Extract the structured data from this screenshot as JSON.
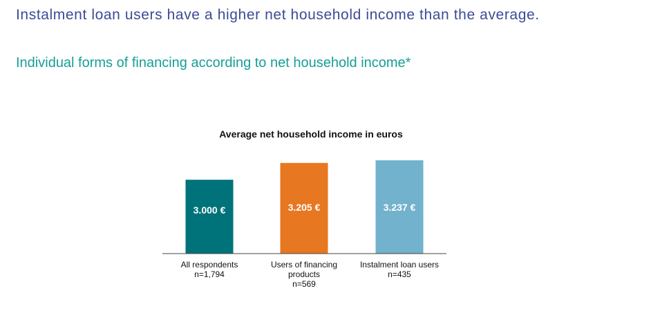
{
  "headline": "Instalment loan users have a higher net household income than the average.",
  "subheadline": "Individual forms of financing according to net household income*",
  "chart_data": {
    "type": "bar",
    "title": "Average net household income in euros",
    "xlabel": "",
    "ylabel": "",
    "ylim": [
      0,
      3300
    ],
    "grid": false,
    "legend": "none",
    "categories": [
      {
        "name": "All respondents",
        "sample": "n=1,794"
      },
      {
        "name": "Users of financing products",
        "sample": "n=569"
      },
      {
        "name": "Instalment loan users",
        "sample": "n=435"
      }
    ],
    "values": [
      3000,
      3205,
      3237
    ],
    "value_labels": [
      "3.000 €",
      "3.205 €",
      "3.237 €"
    ],
    "colors": [
      "#00737a",
      "#e87722",
      "#72b2cc"
    ]
  }
}
